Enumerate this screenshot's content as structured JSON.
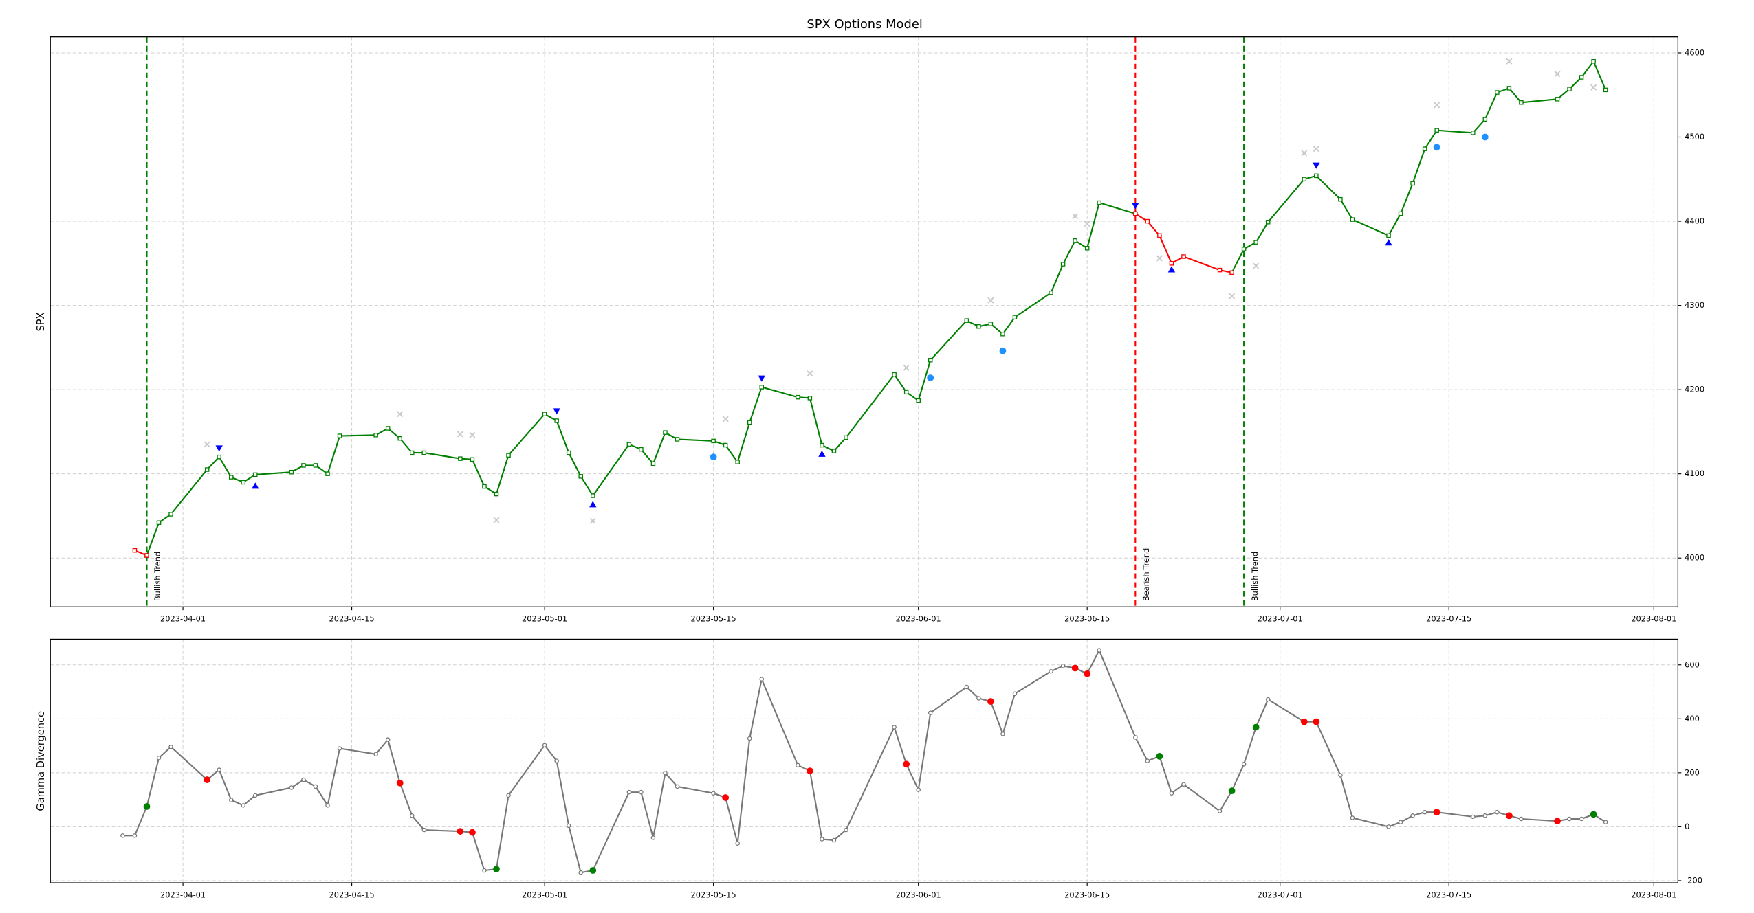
{
  "chart_data": [
    {
      "type": "line",
      "title": "SPX Options Model",
      "ylabel": "SPX",
      "x": [
        "2023-03-28",
        "2023-03-29",
        "2023-03-30",
        "2023-03-31",
        "2023-04-03",
        "2023-04-04",
        "2023-04-05",
        "2023-04-06",
        "2023-04-07",
        "2023-04-10",
        "2023-04-11",
        "2023-04-12",
        "2023-04-13",
        "2023-04-14",
        "2023-04-17",
        "2023-04-18",
        "2023-04-19",
        "2023-04-20",
        "2023-04-21",
        "2023-04-24",
        "2023-04-25",
        "2023-04-26",
        "2023-04-27",
        "2023-04-28",
        "2023-05-01",
        "2023-05-02",
        "2023-05-03",
        "2023-05-04",
        "2023-05-05",
        "2023-05-08",
        "2023-05-09",
        "2023-05-10",
        "2023-05-11",
        "2023-05-12",
        "2023-05-15",
        "2023-05-16",
        "2023-05-17",
        "2023-05-18",
        "2023-05-19",
        "2023-05-22",
        "2023-05-23",
        "2023-05-24",
        "2023-05-25",
        "2023-05-26",
        "2023-05-30",
        "2023-05-31",
        "2023-06-01",
        "2023-06-02",
        "2023-06-05",
        "2023-06-06",
        "2023-06-07",
        "2023-06-08",
        "2023-06-09",
        "2023-06-12",
        "2023-06-13",
        "2023-06-14",
        "2023-06-15",
        "2023-06-16",
        "2023-06-19",
        "2023-06-20",
        "2023-06-21",
        "2023-06-22",
        "2023-06-23",
        "2023-06-26",
        "2023-06-27",
        "2023-06-28",
        "2023-06-29",
        "2023-06-30",
        "2023-07-03",
        "2023-07-04",
        "2023-07-06",
        "2023-07-07",
        "2023-07-10",
        "2023-07-11",
        "2023-07-12",
        "2023-07-13",
        "2023-07-14",
        "2023-07-17",
        "2023-07-18",
        "2023-07-19",
        "2023-07-20",
        "2023-07-21",
        "2023-07-24",
        "2023-07-25",
        "2023-07-26",
        "2023-07-27",
        "2023-07-28"
      ],
      "xlim": [
        "2023-03-21",
        "2023-08-03"
      ],
      "xticks": [
        "2023-04-01",
        "2023-04-15",
        "2023-05-01",
        "2023-05-15",
        "2023-06-01",
        "2023-06-15",
        "2023-07-01",
        "2023-07-15",
        "2023-08-01"
      ],
      "ylim": [
        3942,
        4619
      ],
      "yticks": [
        4000,
        4100,
        4200,
        4300,
        4400,
        4500,
        4600
      ],
      "grid": true,
      "series": [
        {
          "type": "line",
          "color": "green",
          "marker": "s",
          "values": [
            null,
            4003,
            4042,
            4052,
            4105,
            4120,
            4096,
            4090,
            4099,
            4102,
            4110,
            4110,
            4100,
            4145,
            4146,
            4154,
            4142,
            4125,
            4125,
            4118,
            4117,
            4085,
            4076,
            4122,
            4171,
            4163,
            4125,
            4097,
            4074,
            4135,
            4129,
            4112,
            4149,
            4141,
            4139,
            4134,
            4114,
            4161,
            4203,
            4191,
            4190,
            4134,
            4127,
            4143,
            4218,
            4197,
            4187,
            4235,
            4282,
            4275,
            4278,
            4266,
            4286,
            4315,
            4349,
            4377,
            4368,
            4422,
            4409,
            null,
            null,
            null,
            null,
            null,
            4339,
            4367,
            4375,
            4399,
            4450,
            4454,
            4426,
            4402,
            4383,
            4409,
            4445,
            4486,
            4508,
            4505,
            4521,
            4553,
            4558,
            4541,
            4545,
            4557,
            4571,
            4590,
            4556
          ]
        },
        {
          "type": "line",
          "color": "red",
          "marker": "s",
          "values": [
            4009,
            4003,
            null,
            null,
            null,
            null,
            null,
            null,
            null,
            null,
            null,
            null,
            null,
            null,
            null,
            null,
            null,
            null,
            null,
            null,
            null,
            null,
            null,
            null,
            null,
            null,
            null,
            null,
            null,
            null,
            null,
            null,
            null,
            null,
            null,
            null,
            null,
            null,
            null,
            null,
            null,
            null,
            null,
            null,
            null,
            null,
            null,
            null,
            null,
            null,
            null,
            null,
            null,
            null,
            null,
            null,
            null,
            null,
            4409,
            4400,
            4383,
            4350,
            4358,
            4342,
            4339,
            null,
            null,
            null,
            null,
            null,
            null,
            null,
            null,
            null,
            null,
            null,
            null,
            null,
            null,
            null,
            null,
            null,
            null,
            null,
            null,
            null,
            null
          ]
        },
        {
          "type": "scatter",
          "marker": "x",
          "color": "#c8c8c8",
          "x": [
            "2023-04-03",
            "2023-04-19",
            "2023-04-24",
            "2023-04-25",
            "2023-04-27",
            "2023-05-05",
            "2023-05-16",
            "2023-05-23",
            "2023-05-31",
            "2023-06-07",
            "2023-06-14",
            "2023-06-15",
            "2023-06-21",
            "2023-06-27",
            "2023-06-29",
            "2023-07-03",
            "2023-07-04",
            "2023-07-14",
            "2023-07-20",
            "2023-07-24",
            "2023-07-27"
          ],
          "values": [
            4135,
            4171,
            4147,
            4146,
            4045,
            4044,
            4165,
            4219,
            4226,
            4306,
            4406,
            4397,
            4356,
            4311,
            4347,
            4481,
            4486,
            4538,
            4590,
            4575,
            4559
          ]
        },
        {
          "type": "scatter",
          "marker": "v",
          "color": "blue",
          "x": [
            "2023-04-04",
            "2023-05-02",
            "2023-05-19",
            "2023-06-19",
            "2023-07-04"
          ],
          "values": [
            4130,
            4174,
            4213,
            4418,
            4466
          ]
        },
        {
          "type": "scatter",
          "marker": "^",
          "color": "blue",
          "x": [
            "2023-04-07",
            "2023-05-05",
            "2023-05-24",
            "2023-06-22",
            "2023-07-10"
          ],
          "values": [
            4086,
            4064,
            4124,
            4343,
            4375
          ]
        },
        {
          "type": "scatter",
          "marker": "o",
          "color": "#1e90ff",
          "x": [
            "2023-05-15",
            "2023-06-02",
            "2023-06-08",
            "2023-07-14",
            "2023-07-18"
          ],
          "values": [
            4120,
            4214,
            4246,
            4488,
            4500
          ]
        }
      ],
      "vlines": [
        {
          "x": "2023-03-29",
          "color": "green",
          "label": "Bullish Trend"
        },
        {
          "x": "2023-06-19",
          "color": "red",
          "label": "Bearish Trend"
        },
        {
          "x": "2023-06-28",
          "color": "green",
          "label": "Bullish Trend"
        }
      ]
    },
    {
      "type": "line",
      "ylabel": "Gamma Divergence",
      "x": [
        "2023-03-27",
        "2023-03-28",
        "2023-03-29",
        "2023-03-30",
        "2023-03-31",
        "2023-04-03",
        "2023-04-04",
        "2023-04-05",
        "2023-04-06",
        "2023-04-07",
        "2023-04-10",
        "2023-04-11",
        "2023-04-12",
        "2023-04-13",
        "2023-04-14",
        "2023-04-17",
        "2023-04-18",
        "2023-04-19",
        "2023-04-20",
        "2023-04-21",
        "2023-04-24",
        "2023-04-25",
        "2023-04-26",
        "2023-04-27",
        "2023-04-28",
        "2023-05-01",
        "2023-05-02",
        "2023-05-03",
        "2023-05-04",
        "2023-05-05",
        "2023-05-08",
        "2023-05-09",
        "2023-05-10",
        "2023-05-11",
        "2023-05-12",
        "2023-05-15",
        "2023-05-16",
        "2023-05-17",
        "2023-05-18",
        "2023-05-19",
        "2023-05-22",
        "2023-05-23",
        "2023-05-24",
        "2023-05-25",
        "2023-05-26",
        "2023-05-30",
        "2023-05-31",
        "2023-06-01",
        "2023-06-02",
        "2023-06-05",
        "2023-06-06",
        "2023-06-07",
        "2023-06-08",
        "2023-06-09",
        "2023-06-12",
        "2023-06-13",
        "2023-06-14",
        "2023-06-15",
        "2023-06-16",
        "2023-06-19",
        "2023-06-20",
        "2023-06-21",
        "2023-06-22",
        "2023-06-23",
        "2023-06-26",
        "2023-06-27",
        "2023-06-28",
        "2023-06-29",
        "2023-06-30",
        "2023-07-03",
        "2023-07-04",
        "2023-07-06",
        "2023-07-07",
        "2023-07-10",
        "2023-07-11",
        "2023-07-12",
        "2023-07-13",
        "2023-07-14",
        "2023-07-17",
        "2023-07-18",
        "2023-07-19",
        "2023-07-20",
        "2023-07-21",
        "2023-07-24",
        "2023-07-25",
        "2023-07-26",
        "2023-07-27",
        "2023-07-28"
      ],
      "xlim": [
        "2023-03-21",
        "2023-08-03"
      ],
      "xticks": [
        "2023-04-01",
        "2023-04-15",
        "2023-05-01",
        "2023-05-15",
        "2023-06-01",
        "2023-06-15",
        "2023-07-01",
        "2023-07-15",
        "2023-08-01"
      ],
      "ylim": [
        -208,
        695
      ],
      "yticks": [
        -200,
        0,
        200,
        400,
        600
      ],
      "grid": true,
      "series": [
        {
          "type": "line",
          "color": "#777777",
          "marker": "o",
          "values": [
            -33,
            -33,
            75,
            255,
            296,
            174,
            211,
            99,
            79,
            116,
            145,
            174,
            149,
            79,
            290,
            269,
            323,
            162,
            41,
            -12,
            -17,
            -21,
            -162,
            -157,
            116,
            302,
            244,
            4,
            -170,
            -162,
            128,
            128,
            -41,
            199,
            149,
            124,
            108,
            -62,
            327,
            547,
            228,
            207,
            -46,
            -50,
            -12,
            369,
            232,
            137,
            422,
            518,
            476,
            464,
            344,
            493,
            576,
            596,
            588,
            567,
            654,
            331,
            244,
            261,
            124,
            157,
            58,
            133,
            232,
            369,
            472,
            389,
            389,
            191,
            33,
            0,
            17,
            41,
            54,
            54,
            37,
            41,
            54,
            41,
            29,
            21,
            29,
            29,
            46,
            17
          ],
          "marker_colors": [
            null,
            null,
            "green",
            null,
            null,
            "red",
            null,
            null,
            null,
            null,
            null,
            null,
            null,
            null,
            null,
            null,
            null,
            "red",
            null,
            null,
            "red",
            "red",
            null,
            "green",
            null,
            null,
            null,
            null,
            null,
            "green",
            null,
            null,
            null,
            null,
            null,
            null,
            "red",
            null,
            null,
            null,
            null,
            "red",
            null,
            null,
            null,
            null,
            "red",
            null,
            null,
            null,
            null,
            "red",
            null,
            null,
            null,
            null,
            "red",
            "red",
            null,
            null,
            null,
            "green",
            null,
            null,
            null,
            "green",
            null,
            "green",
            null,
            "red",
            "red",
            null,
            null,
            null,
            null,
            null,
            null,
            "red",
            null,
            null,
            null,
            "red",
            null,
            "red",
            null,
            null,
            "green",
            null
          ]
        }
      ]
    }
  ]
}
